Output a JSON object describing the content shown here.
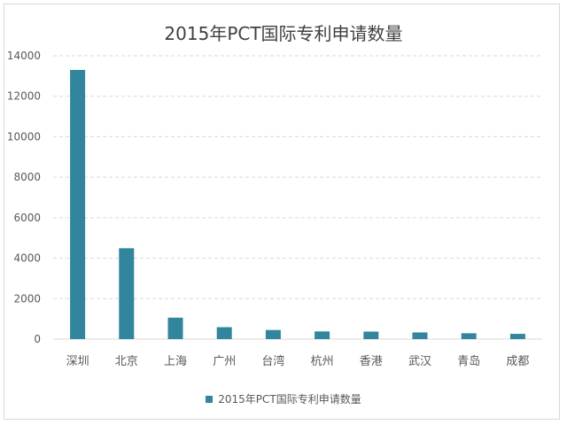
{
  "chart_data": {
    "type": "bar",
    "title": "2015年PCT国际专利申请数量",
    "categories": [
      "深圳",
      "北京",
      "上海",
      "广州",
      "台湾",
      "杭州",
      "香港",
      "武汉",
      "青岛",
      "成都"
    ],
    "series": [
      {
        "name": "2015年PCT国际专利申请数量",
        "values": [
          13300,
          4490,
          1060,
          590,
          450,
          380,
          370,
          330,
          290,
          260
        ]
      }
    ],
    "ylim": [
      0,
      14000
    ],
    "yticks": [
      0,
      2000,
      4000,
      6000,
      8000,
      10000,
      12000,
      14000
    ],
    "grid": true,
    "legend_position": "bottom",
    "colors": {
      "bar": "#31859c",
      "grid": "#d9d9d9",
      "axis_text": "#595959"
    }
  }
}
